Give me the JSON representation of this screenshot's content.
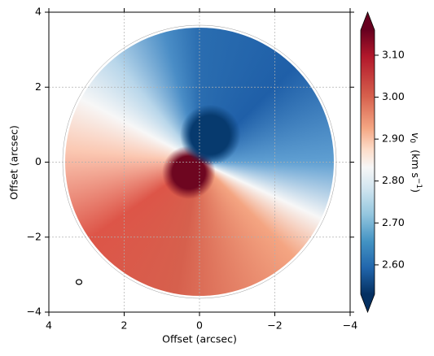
{
  "chart_data": {
    "type": "velocity-map",
    "xlabel": "Offset (arcsec)",
    "ylabel": "Offset (arcsec)",
    "xlim": [
      4,
      -4
    ],
    "ylim": [
      -4,
      4
    ],
    "xticks": [
      4,
      2,
      0,
      {
        "value": -2,
        "label": "−2"
      },
      {
        "value": -4,
        "label": "−4"
      }
    ],
    "yticks": [
      {
        "value": -4,
        "label": "−4"
      },
      {
        "value": -2,
        "label": "−2"
      },
      0,
      2,
      4
    ],
    "grid": true,
    "colorbar": {
      "clim": [
        2.53,
        3.16
      ],
      "ticks": [
        {
          "value": 2.6,
          "label": "2.60"
        },
        {
          "value": 2.7,
          "label": "2.70"
        },
        {
          "value": 2.8,
          "label": "2.80"
        },
        {
          "value": 2.9,
          "label": "2.90"
        },
        {
          "value": 3.0,
          "label": "3.00"
        },
        {
          "value": 3.1,
          "label": "3.10"
        }
      ],
      "label": {
        "symbol": "v",
        "subscript": "0",
        "unit": "(km s",
        "exponent": "−1",
        "close": ")"
      }
    }
  }
}
